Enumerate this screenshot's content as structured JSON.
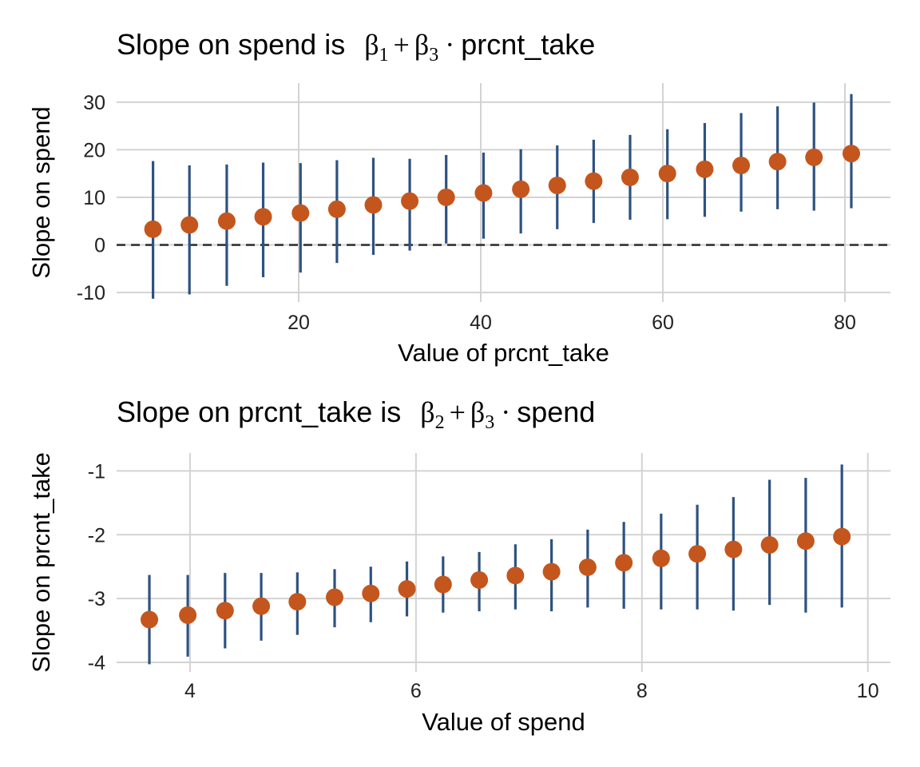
{
  "colors": {
    "point": "#C4561D",
    "interval": "#2E5280",
    "grid": "#D3D3D3",
    "zero_line": "#333333"
  },
  "chart_data": [
    {
      "type": "scatter",
      "title": "Slope on spend is",
      "title_formula": {
        "b1": "β",
        "s1": "1",
        "plus": "+",
        "b3": "β",
        "s3": "3",
        "dot": "·",
        "var": "prcnt_take"
      },
      "xlabel": "Value of prcnt_take",
      "ylabel": "Slope on spend",
      "xlim": [
        0,
        85
      ],
      "ylim": [
        -12,
        34
      ],
      "xticks": [
        20,
        40,
        60,
        80
      ],
      "yticks": [
        -10,
        0,
        10,
        20,
        30
      ],
      "xtick_labels": [
        "20",
        "40",
        "60",
        "80"
      ],
      "ytick_labels": [
        "-10",
        "0",
        "10",
        "20",
        "30"
      ],
      "grid": true,
      "reference_line": {
        "y": 0,
        "style": "dashed"
      },
      "x": [
        4.0,
        8.0,
        12.1,
        16.1,
        20.2,
        24.2,
        28.2,
        32.2,
        36.2,
        40.3,
        44.4,
        48.4,
        52.4,
        56.4,
        60.5,
        64.6,
        68.6,
        72.6,
        76.6,
        80.7
      ],
      "y": [
        3.3,
        4.2,
        5.0,
        5.9,
        6.7,
        7.5,
        8.4,
        9.2,
        10.0,
        10.9,
        11.7,
        12.5,
        13.4,
        14.2,
        15.0,
        15.9,
        16.7,
        17.5,
        18.4,
        19.2
      ],
      "lower": [
        -11.3,
        -10.4,
        -8.6,
        -6.8,
        -5.8,
        -3.8,
        -2.1,
        -1.2,
        0.3,
        1.3,
        2.4,
        3.3,
        4.6,
        5.3,
        5.4,
        5.9,
        7.0,
        7.5,
        7.2,
        7.7
      ],
      "upper": [
        17.6,
        16.7,
        16.9,
        17.3,
        17.2,
        17.8,
        18.3,
        18.1,
        18.9,
        19.4,
        20.1,
        20.9,
        22.1,
        23.1,
        24.3,
        25.6,
        27.7,
        29.1,
        29.9,
        31.7
      ]
    },
    {
      "type": "scatter",
      "title": "Slope on prcnt_take is",
      "title_formula": {
        "b1": "β",
        "s1": "2",
        "plus": "+",
        "b3": "β",
        "s3": "3",
        "dot": "·",
        "var": "spend"
      },
      "xlabel": "Value of spend",
      "ylabel": "Slope on prcnt_take",
      "xlim": [
        3.35,
        10.2
      ],
      "ylim": [
        -4.15,
        -0.72
      ],
      "xticks": [
        4,
        6,
        8,
        10
      ],
      "yticks": [
        -4,
        -3,
        -2,
        -1
      ],
      "xtick_labels": [
        "4",
        "6",
        "8",
        "10"
      ],
      "ytick_labels": [
        "-4",
        "-3",
        "-2",
        "-1"
      ],
      "grid": true,
      "x": [
        3.64,
        3.98,
        4.31,
        4.63,
        4.95,
        5.28,
        5.6,
        5.92,
        6.24,
        6.56,
        6.88,
        7.2,
        7.52,
        7.84,
        8.17,
        8.49,
        8.81,
        9.13,
        9.45,
        9.77
      ],
      "y": [
        -3.33,
        -3.26,
        -3.19,
        -3.12,
        -3.05,
        -2.98,
        -2.92,
        -2.85,
        -2.78,
        -2.71,
        -2.64,
        -2.58,
        -2.51,
        -2.44,
        -2.37,
        -2.3,
        -2.23,
        -2.16,
        -2.1,
        -2.03
      ],
      "lower": [
        -4.03,
        -3.91,
        -3.78,
        -3.66,
        -3.57,
        -3.45,
        -3.37,
        -3.28,
        -3.22,
        -3.2,
        -3.17,
        -3.2,
        -3.14,
        -3.16,
        -3.17,
        -3.17,
        -3.19,
        -3.1,
        -3.22,
        -3.14
      ],
      "upper": [
        -2.63,
        -2.63,
        -2.6,
        -2.6,
        -2.59,
        -2.54,
        -2.5,
        -2.42,
        -2.34,
        -2.27,
        -2.15,
        -2.07,
        -1.92,
        -1.8,
        -1.67,
        -1.53,
        -1.41,
        -1.14,
        -1.11,
        -0.9
      ]
    }
  ]
}
